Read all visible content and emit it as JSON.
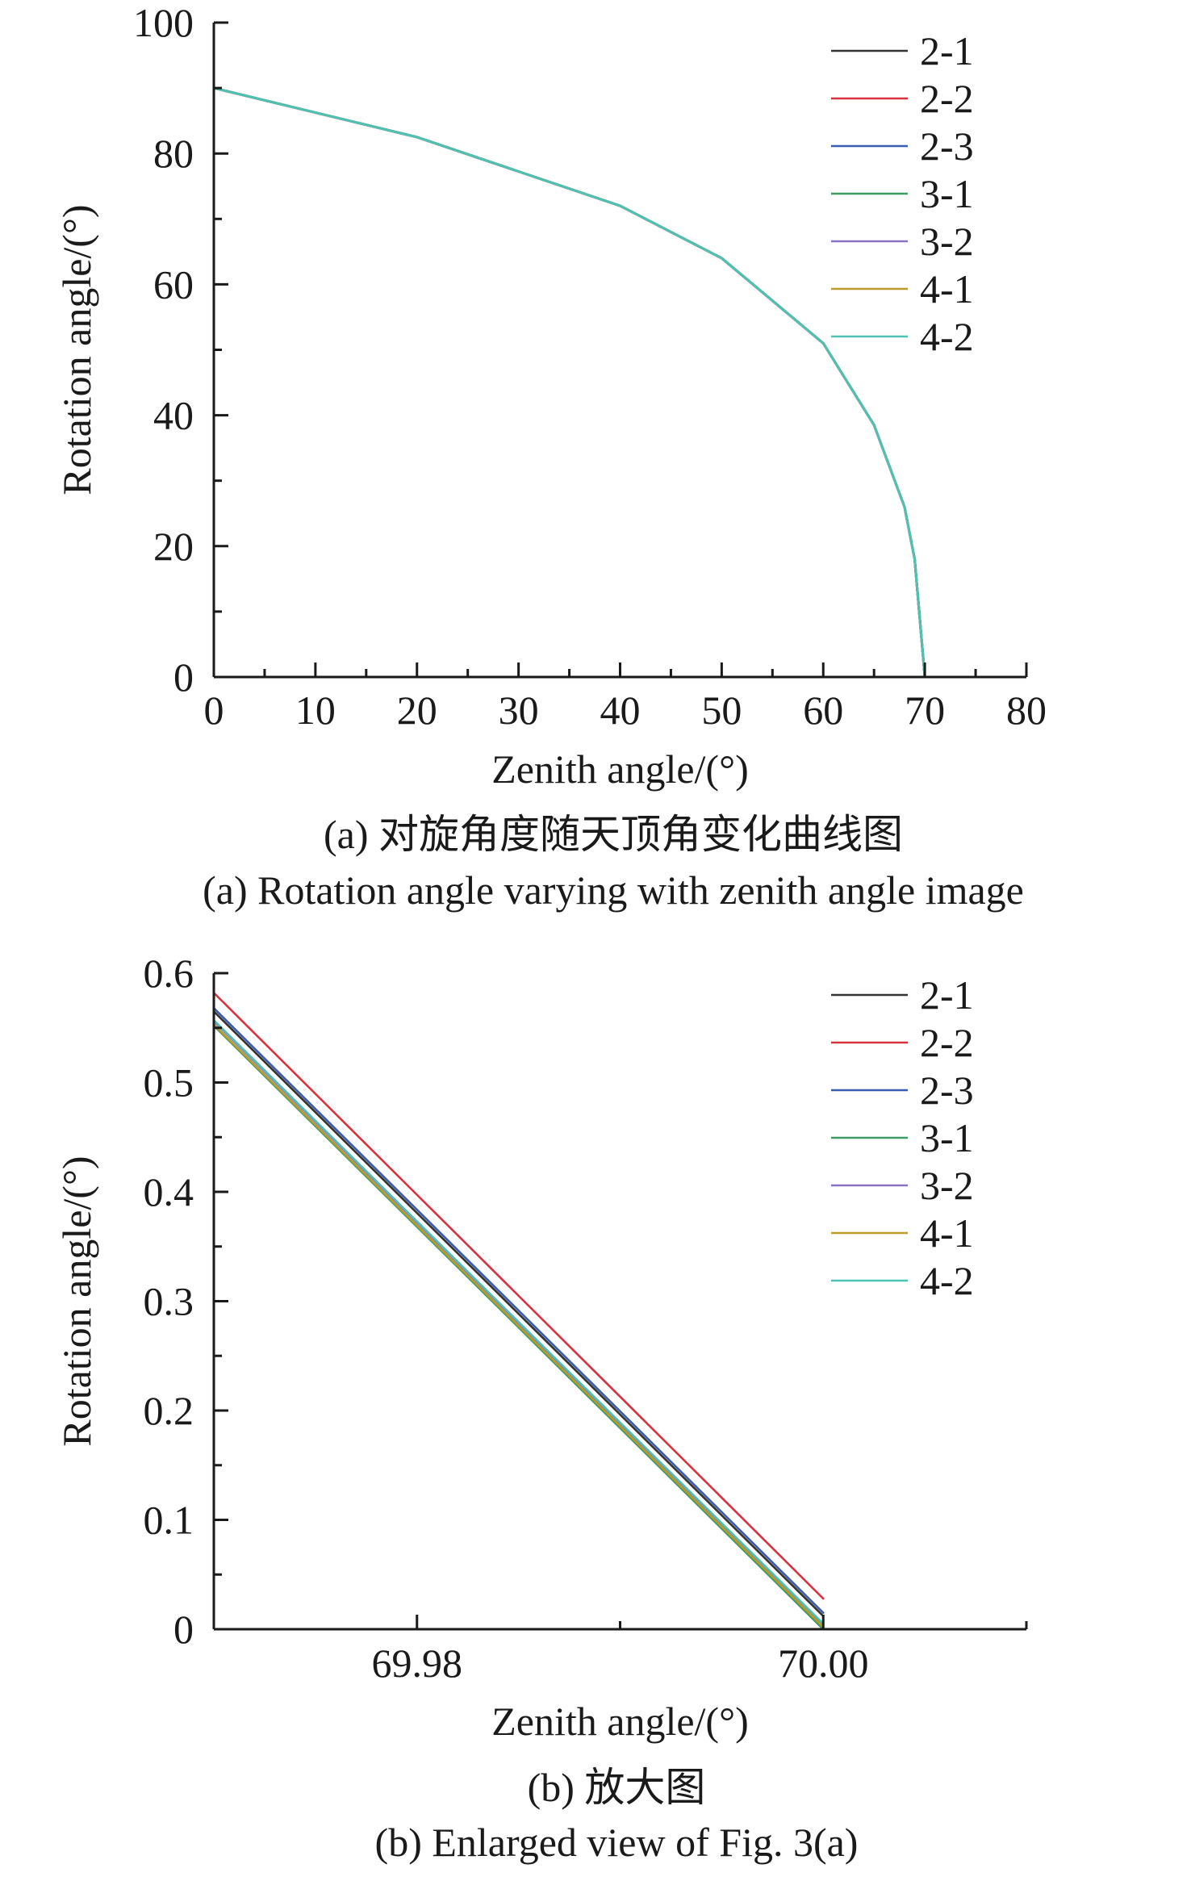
{
  "chart_data": [
    {
      "type": "line",
      "xlabel": "Zenith angle/(°)",
      "ylabel": "Rotation angle/(°)",
      "xlim": [
        0,
        80
      ],
      "ylim": [
        0,
        100
      ],
      "xticks": [
        "0",
        "10",
        "20",
        "30",
        "40",
        "50",
        "60",
        "70",
        "80"
      ],
      "yticks": [
        "0",
        "20",
        "40",
        "60",
        "80",
        "100"
      ],
      "legend_position": "top-right",
      "caption_cn": "(a) 对旋角度随天顶角变化曲线图",
      "caption_en": "(a) Rotation angle varying with zenith angle image",
      "series": [
        {
          "name": "2-1",
          "color": "#333333",
          "x": [
            0,
            20,
            40,
            50,
            60,
            65,
            68,
            69,
            70
          ],
          "y": [
            90,
            82.5,
            72,
            64,
            51,
            38.5,
            26,
            18,
            0
          ]
        },
        {
          "name": "2-2",
          "color": "#d8323e",
          "x": [
            0,
            20,
            40,
            50,
            60,
            65,
            68,
            69,
            70
          ],
          "y": [
            90,
            82.5,
            72,
            64,
            51,
            38.5,
            26,
            18,
            0
          ]
        },
        {
          "name": "2-3",
          "color": "#3a5cb0",
          "x": [
            0,
            20,
            40,
            50,
            60,
            65,
            68,
            69,
            70
          ],
          "y": [
            90,
            82.5,
            72,
            64,
            51,
            38.5,
            26,
            18,
            0
          ]
        },
        {
          "name": "3-1",
          "color": "#3f9a62",
          "x": [
            0,
            20,
            40,
            50,
            60,
            65,
            68,
            69,
            70
          ],
          "y": [
            90,
            82.5,
            72,
            64,
            51,
            38.5,
            26,
            18,
            0
          ]
        },
        {
          "name": "3-2",
          "color": "#8a72c2",
          "x": [
            0,
            20,
            40,
            50,
            60,
            65,
            68,
            69,
            70
          ],
          "y": [
            90,
            82.5,
            72,
            64,
            51,
            38.5,
            26,
            18,
            0
          ]
        },
        {
          "name": "4-1",
          "color": "#b99a2a",
          "x": [
            0,
            20,
            40,
            50,
            60,
            65,
            68,
            69,
            70
          ],
          "y": [
            90,
            82.5,
            72,
            64,
            51,
            38.5,
            26,
            18,
            0
          ]
        },
        {
          "name": "4-2",
          "color": "#4fc1b4",
          "x": [
            0,
            20,
            40,
            50,
            60,
            65,
            68,
            69,
            70
          ],
          "y": [
            90,
            82.5,
            72,
            64,
            51,
            38.5,
            26,
            18,
            0
          ]
        }
      ]
    },
    {
      "type": "line",
      "xlabel": "Zenith angle/(°)",
      "ylabel": "Rotation angle/(°)",
      "xlim": [
        69.97,
        70.01
      ],
      "ylim": [
        0,
        0.6
      ],
      "xticks": [
        "69.98",
        "70.00"
      ],
      "yticks": [
        "0",
        "0.1",
        "0.2",
        "0.3",
        "0.4",
        "0.5",
        "0.6"
      ],
      "legend_position": "top-right",
      "caption_cn": "(b) 放大图",
      "caption_en": "(b) Enlarged view of Fig. 3(a)",
      "series": [
        {
          "name": "2-1",
          "color": "#333333",
          "x": [
            69.97,
            70.0
          ],
          "y": [
            0.565,
            0.012
          ]
        },
        {
          "name": "2-2",
          "color": "#d8323e",
          "x": [
            69.97,
            70.0
          ],
          "y": [
            0.582,
            0.028
          ]
        },
        {
          "name": "2-3",
          "color": "#3a5cb0",
          "x": [
            69.97,
            70.0
          ],
          "y": [
            0.568,
            0.015
          ]
        },
        {
          "name": "3-1",
          "color": "#3f9a62",
          "x": [
            69.97,
            70.0
          ],
          "y": [
            0.552,
            0.0
          ]
        },
        {
          "name": "3-2",
          "color": "#8a72c2",
          "x": [
            69.97,
            70.0
          ],
          "y": [
            0.556,
            0.004
          ]
        },
        {
          "name": "4-1",
          "color": "#b99a2a",
          "x": [
            69.97,
            70.0
          ],
          "y": [
            0.553,
            0.002
          ]
        },
        {
          "name": "4-2",
          "color": "#4fc1b4",
          "x": [
            69.97,
            70.0
          ],
          "y": [
            0.557,
            0.005
          ]
        }
      ]
    }
  ]
}
